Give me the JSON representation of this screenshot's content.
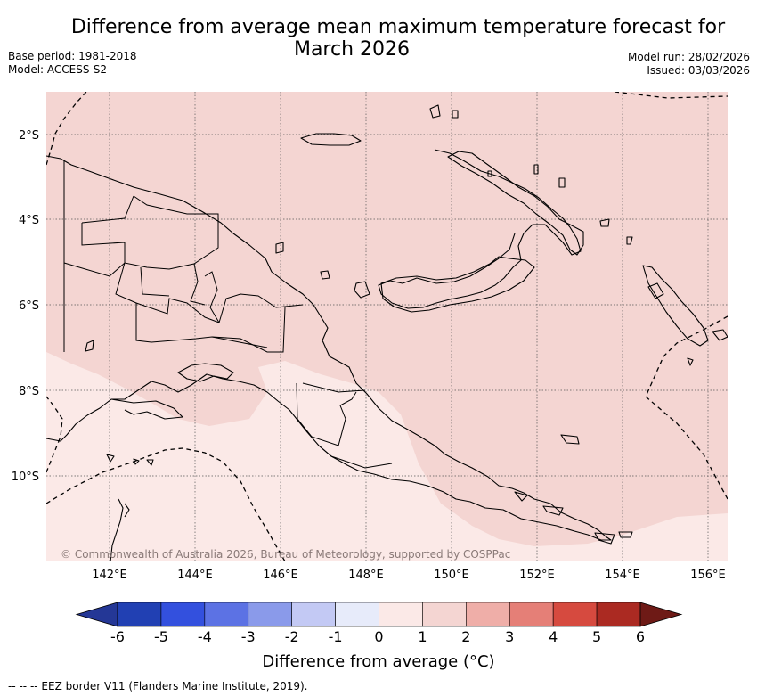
{
  "header": {
    "title_line1": "Difference from average mean maximum temperature forecast for",
    "title_line2": "March 2026",
    "base_period": "Base period: 1981-2018",
    "model": "Model: ACCESS-S2",
    "model_run": "Model run: 28/02/2026",
    "issued": "Issued: 03/03/2026"
  },
  "map": {
    "latitude_labels": [
      "2°S",
      "4°S",
      "6°S",
      "8°S",
      "10°S"
    ],
    "longitude_labels": [
      "142°E",
      "144°E",
      "146°E",
      "148°E",
      "150°E",
      "152°E",
      "154°E",
      "156°E"
    ],
    "copyright": "© Commonwealth of Australia 2026, Bureau of Meteorology, supported by COSPPac",
    "colors": {
      "anomaly_0_to_1": "#fbe9e7",
      "anomaly_1_to_2": "#f4d5d2",
      "coastline": "#000000",
      "grid": "#555555"
    }
  },
  "colorbar": {
    "ticks": [
      "-6",
      "-5",
      "-4",
      "-3",
      "-2",
      "-1",
      "0",
      "1",
      "2",
      "3",
      "4",
      "5",
      "6"
    ],
    "colors": [
      "#243796",
      "#2140b3",
      "#3350de",
      "#5c72e4",
      "#8a9aea",
      "#c3c9f4",
      "#e7ebfa",
      "#fbe9e7",
      "#f4d5d2",
      "#efaea8",
      "#e57f77",
      "#d64a3f",
      "#ab2a22",
      "#6e1a16"
    ],
    "title": "Difference from average (°C)"
  },
  "footnote": "--  --  -- EEZ border V11 (Flanders Marine Institute, 2019)."
}
